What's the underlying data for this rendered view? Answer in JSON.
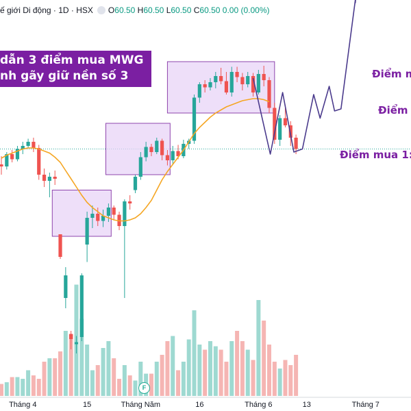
{
  "header": {
    "title": "ế giới Di động · 1D · HSX",
    "o_label": "O",
    "o_value": "60.50",
    "h_label": "H",
    "h_value": "60.50",
    "l_label": "L",
    "l_value": "60.50",
    "c_label": "C",
    "c_value": "60.50",
    "change": "0.00 (0.00%)"
  },
  "banner": {
    "line1": "dẫn 3 điểm mua MWG",
    "line2": "nh gãy giữ nền số 3"
  },
  "annotations": {
    "buy3": "Điểm m",
    "buy2": "Điểm m",
    "buy1": "Điểm mua 1:"
  },
  "badge": {
    "label": "F"
  },
  "colors": {
    "up": "#26a69a",
    "down": "#ef5350",
    "ma": "#f5a623",
    "box_fill": "#e8d4f7",
    "box_stroke": "#8e44ad",
    "path": "#4a3a8c",
    "vol_up": "#9ed9d1",
    "vol_down": "#f5b5b3"
  },
  "chart_data": {
    "type": "candlestick",
    "title": "ế giới Di động · 1D · HSX",
    "x_ticks": [
      {
        "i": 4,
        "label": "Tháng 4"
      },
      {
        "i": 16,
        "label": "15"
      },
      {
        "i": 26,
        "label": "Tháng Năm"
      },
      {
        "i": 37,
        "label": "16"
      },
      {
        "i": 48,
        "label": "Tháng 6"
      },
      {
        "i": 57,
        "label": "13"
      },
      {
        "i": 68,
        "label": "Tháng 7"
      }
    ],
    "y_range": [
      35,
      75
    ],
    "reference_price": 60.5,
    "ohlc": [
      [
        59.0,
        59.8,
        58.0,
        58.8
      ],
      [
        58.8,
        60.2,
        58.5,
        60.0
      ],
      [
        60.0,
        60.4,
        59.2,
        59.5
      ],
      [
        59.5,
        60.8,
        59.3,
        60.5
      ],
      [
        60.5,
        61.2,
        60.0,
        60.8
      ],
      [
        60.8,
        61.5,
        60.6,
        61.2
      ],
      [
        61.2,
        61.6,
        60.2,
        60.6
      ],
      [
        60.6,
        60.9,
        57.5,
        58.0
      ],
      [
        58.0,
        58.6,
        56.8,
        57.4
      ],
      [
        57.4,
        58.2,
        55.8,
        57.8
      ],
      [
        57.8,
        58.4,
        57.0,
        57.6
      ],
      [
        52.2,
        52.2,
        49.8,
        50.0
      ],
      [
        46.0,
        49.0,
        45.0,
        48.2
      ],
      [
        42.5,
        42.8,
        41.0,
        42.0
      ],
      [
        41.5,
        42.3,
        40.6,
        41.7
      ],
      [
        42.2,
        48.4,
        41.8,
        48.2
      ],
      [
        51.2,
        54.4,
        49.5,
        53.8
      ],
      [
        53.8,
        55.0,
        52.8,
        54.2
      ],
      [
        54.2,
        54.8,
        53.0,
        53.5
      ],
      [
        53.5,
        54.6,
        52.9,
        54.0
      ],
      [
        54.0,
        55.2,
        53.4,
        54.8
      ],
      [
        54.8,
        55.0,
        53.6,
        54.1
      ],
      [
        54.1,
        54.4,
        52.6,
        53.0
      ],
      [
        53.0,
        55.6,
        46.0,
        55.4
      ],
      [
        55.4,
        56.0,
        54.6,
        55.2
      ],
      [
        56.5,
        58.0,
        56.2,
        57.8
      ],
      [
        57.8,
        60.2,
        57.5,
        59.7
      ],
      [
        59.7,
        61.2,
        59.3,
        60.7
      ],
      [
        60.7,
        61.0,
        59.8,
        60.2
      ],
      [
        60.2,
        61.6,
        60.0,
        61.3
      ],
      [
        61.3,
        61.5,
        59.4,
        59.9
      ],
      [
        59.9,
        60.4,
        58.9,
        59.4
      ],
      [
        59.4,
        60.8,
        59.0,
        60.3
      ],
      [
        60.3,
        60.9,
        59.5,
        59.8
      ],
      [
        59.8,
        61.4,
        59.6,
        61.0
      ],
      [
        61.0,
        61.5,
        60.5,
        61.3
      ],
      [
        61.3,
        65.8,
        61.0,
        65.5
      ],
      [
        65.5,
        67.0,
        65.0,
        66.8
      ],
      [
        66.8,
        67.2,
        66.0,
        66.5
      ],
      [
        66.5,
        67.4,
        66.2,
        67.0
      ],
      [
        67.0,
        68.0,
        66.4,
        67.6
      ],
      [
        67.6,
        68.4,
        66.8,
        67.1
      ],
      [
        67.1,
        68.0,
        65.8,
        66.0
      ],
      [
        66.0,
        68.5,
        65.6,
        68.0
      ],
      [
        68.0,
        68.5,
        67.0,
        67.5
      ],
      [
        67.5,
        67.9,
        66.2,
        66.8
      ],
      [
        66.8,
        68.0,
        66.5,
        67.6
      ],
      [
        67.6,
        67.9,
        65.6,
        66.0
      ],
      [
        66.0,
        68.2,
        65.8,
        67.8
      ],
      [
        67.8,
        68.6,
        66.6,
        67.2
      ],
      [
        67.2,
        67.5,
        64.0,
        64.5
      ],
      [
        64.5,
        65.0,
        61.0,
        61.4
      ],
      [
        61.4,
        63.8,
        60.8,
        63.5
      ],
      [
        63.5,
        64.8,
        62.6,
        62.8
      ],
      [
        62.8,
        63.2,
        60.8,
        61.6
      ],
      [
        61.6,
        61.9,
        60.0,
        60.5
      ]
    ],
    "ma_values": [
      59.6,
      59.9,
      60.1,
      60.3,
      60.5,
      60.6,
      60.6,
      60.5,
      60.3,
      60.1,
      59.7,
      59.2,
      58.4,
      57.6,
      56.8,
      56.0,
      55.3,
      54.8,
      54.4,
      54.0,
      53.8,
      53.6,
      53.5,
      53.5,
      53.6,
      53.8,
      54.2,
      54.8,
      55.5,
      56.5,
      57.5,
      58.3,
      59.0,
      59.7,
      60.4,
      61.2,
      62.0,
      62.6,
      63.1,
      63.6,
      64.0,
      64.3,
      64.6,
      64.8,
      65.0,
      65.2,
      65.3,
      65.4,
      65.4,
      65.3,
      65.1
    ],
    "volume": [
      7,
      8,
      11,
      11,
      10,
      15,
      12,
      10,
      20,
      22,
      22,
      26,
      38,
      36,
      65,
      45,
      30,
      15,
      18,
      28,
      32,
      22,
      10,
      18,
      12,
      9,
      20,
      13,
      13,
      20,
      24,
      32,
      35,
      15,
      20,
      33,
      50,
      30,
      27,
      32,
      29,
      27,
      20,
      32,
      38,
      32,
      27,
      21,
      56,
      44,
      30,
      20,
      16,
      21,
      18,
      24
    ],
    "boxes": [
      {
        "from": 9.5,
        "to": 20.5,
        "low": 52.0,
        "high": 56.5
      },
      {
        "from": 19.5,
        "to": 31.5,
        "low": 58.0,
        "high": 63.0
      },
      {
        "from": 31.0,
        "to": 51.0,
        "low": 64.0,
        "high": 69.0
      }
    ]
  }
}
